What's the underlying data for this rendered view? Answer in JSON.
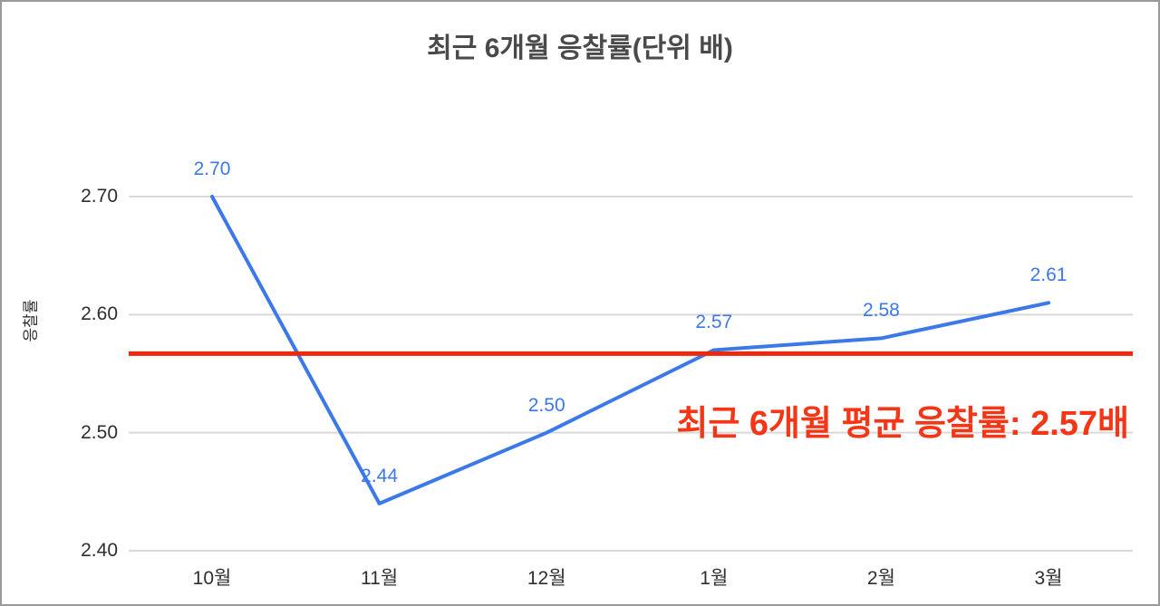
{
  "chart_data": {
    "type": "line",
    "title": "최근 6개월 응찰률(단위 배)",
    "ylabel": "응찰률",
    "xlabel": "",
    "categories": [
      "10월",
      "11월",
      "12월",
      "1월",
      "2월",
      "3월"
    ],
    "values": [
      2.7,
      2.44,
      2.5,
      2.57,
      2.58,
      2.61
    ],
    "point_labels": [
      "2.70",
      "2.44",
      "2.50",
      "2.57",
      "2.58",
      "2.61"
    ],
    "ylim": [
      2.4,
      2.74
    ],
    "yticks": [
      2.4,
      2.5,
      2.6,
      2.7
    ],
    "ytick_labels": [
      "2.40",
      "2.50",
      "2.60",
      "2.70"
    ],
    "average_value": 2.567,
    "average_label": "최근 6개월 평균 응찰률: 2.57배",
    "grid": true,
    "legend": "none"
  },
  "colors": {
    "series_line": "#3b78e8",
    "point_label": "#3b78e8",
    "average_line": "#ea2a0e",
    "average_label": "#f43516",
    "gridline": "#d9d9d9",
    "axis_text": "#2e2e2e",
    "title_text": "#4a4a4a",
    "frame_border": "#9a9a9a",
    "background": "#ffffff"
  }
}
